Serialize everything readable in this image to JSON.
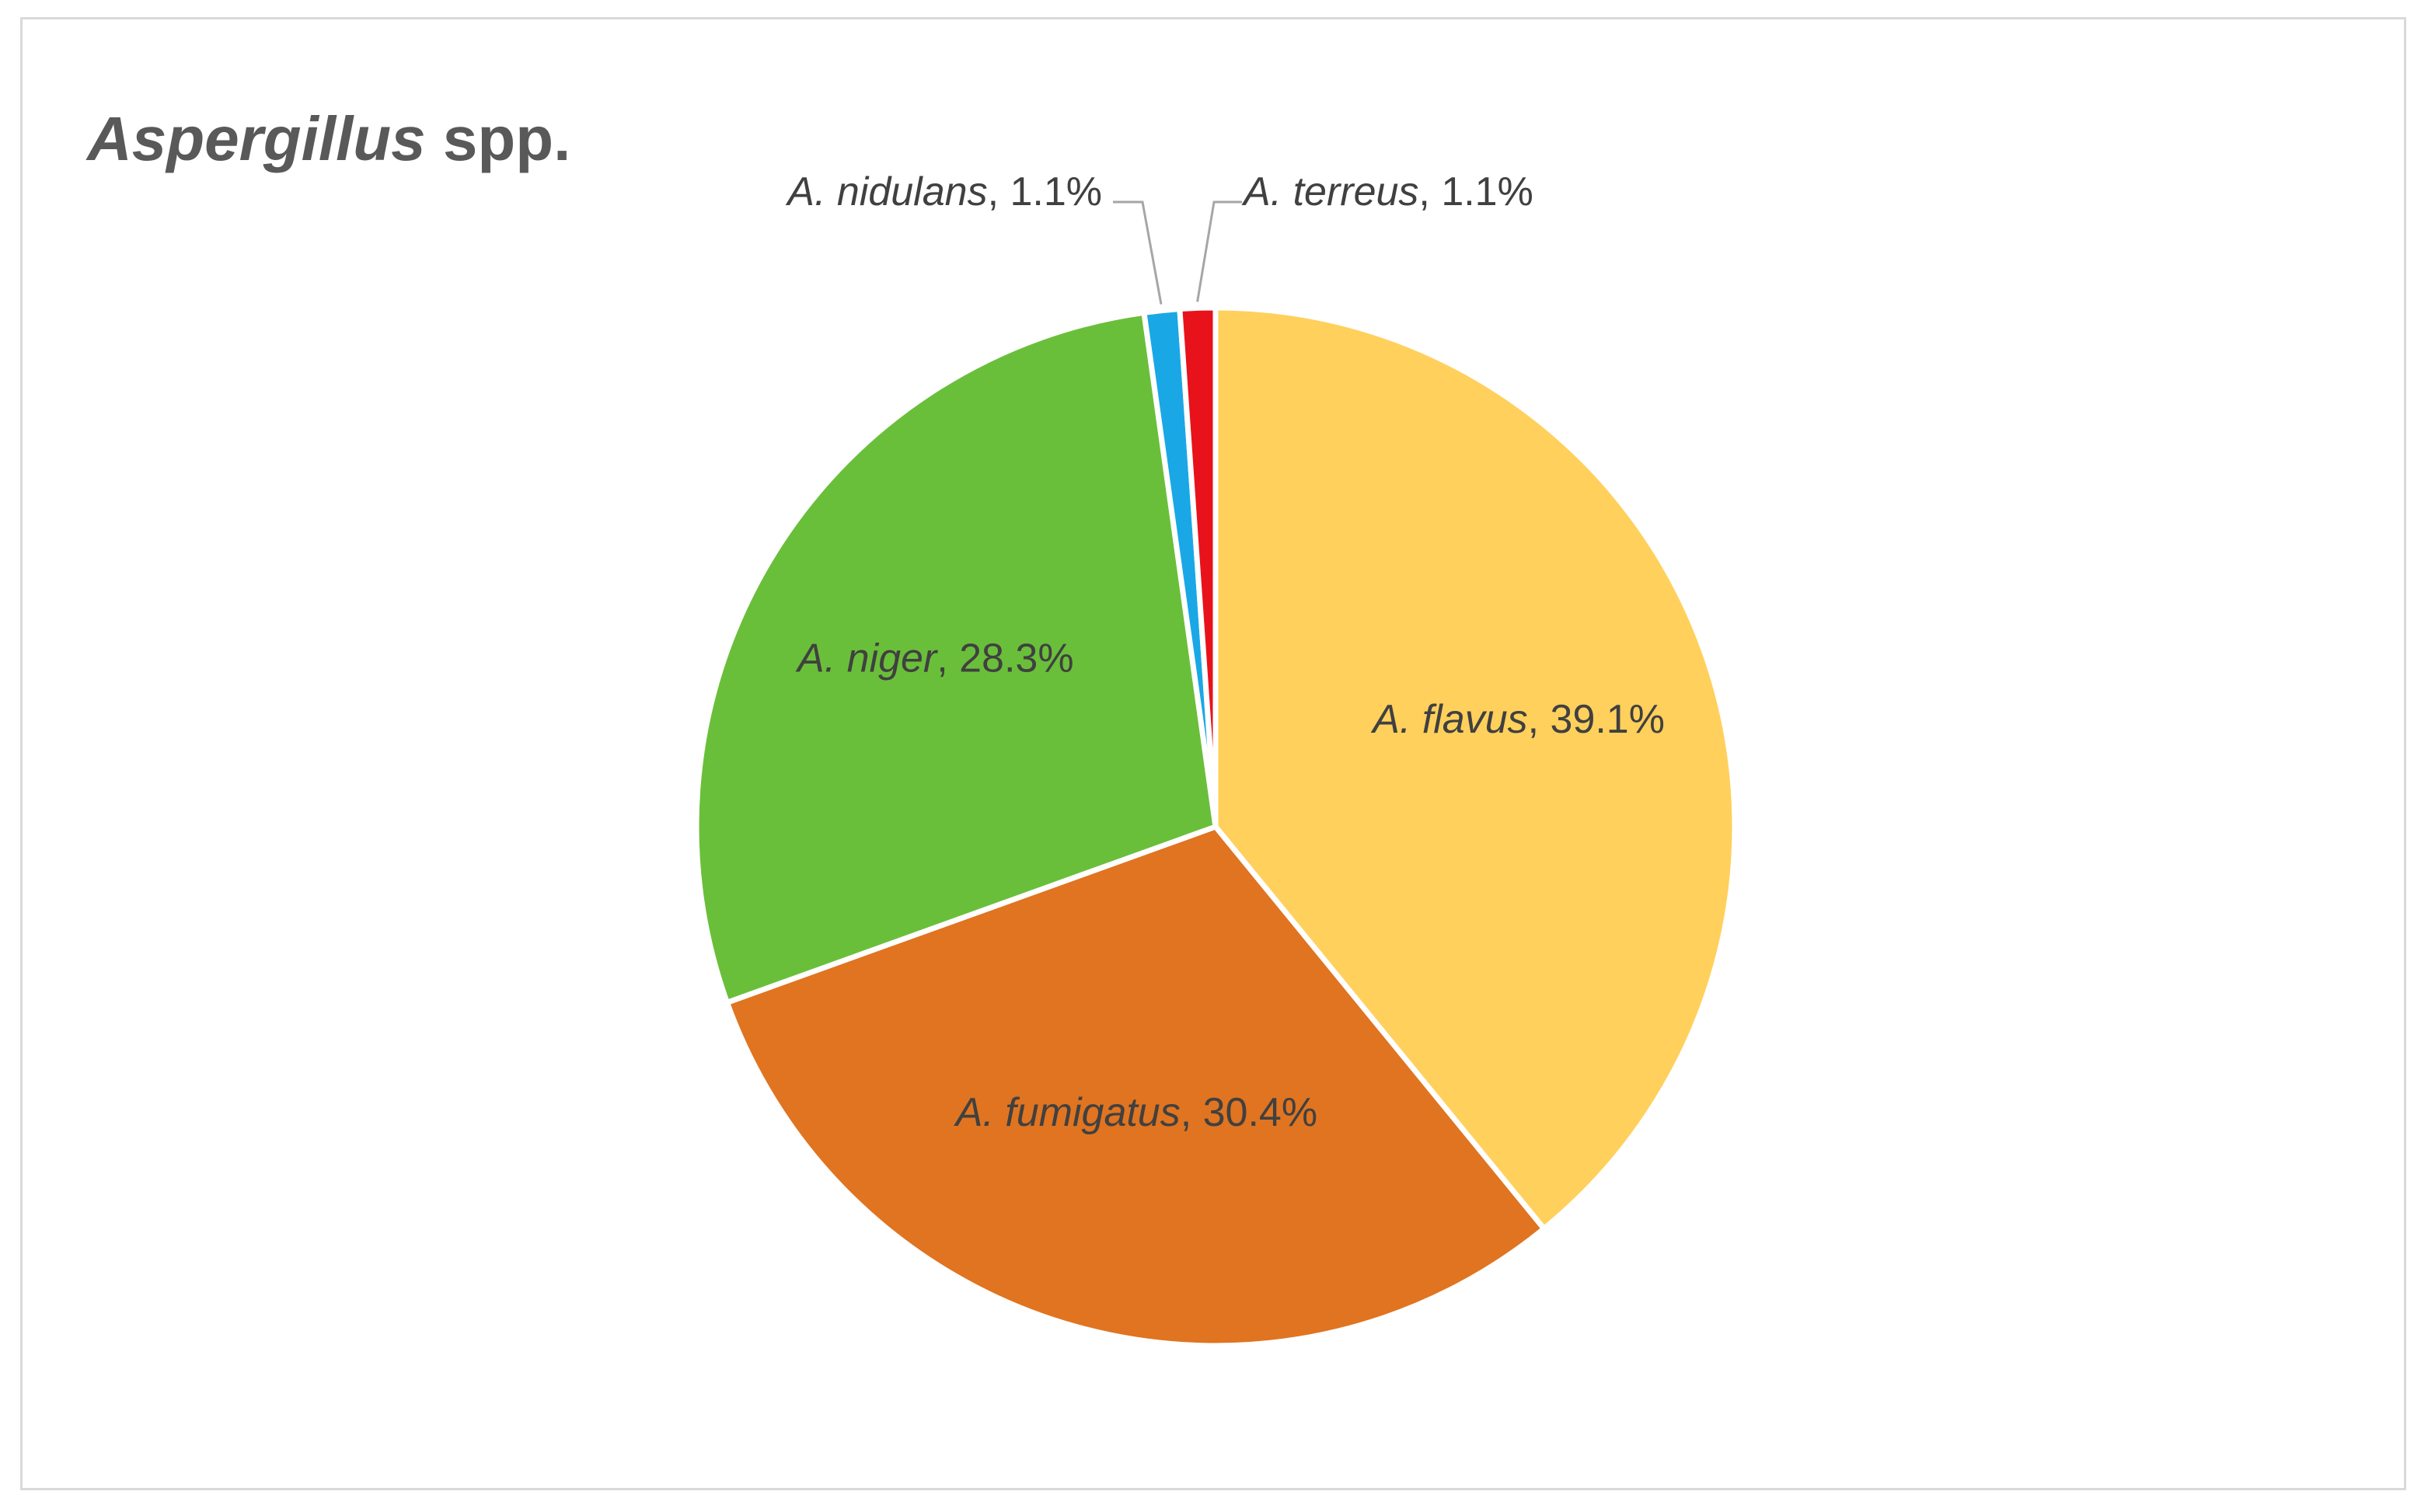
{
  "chart_data": {
    "type": "pie",
    "title": {
      "italic_part": "Aspergillus",
      "plain_part": " spp."
    },
    "start": "12 o'clock, clockwise",
    "slices": [
      {
        "genus": "A. ",
        "species": "flavus",
        "pct_text": ", 39.1%",
        "value": 39.1,
        "color": "#FFD05C",
        "label_pos": "inside"
      },
      {
        "genus": "A. ",
        "species": "fumigatus",
        "pct_text": ", 30.4%",
        "value": 30.4,
        "color": "#E07420",
        "label_pos": "inside"
      },
      {
        "genus": "A. ",
        "species": "niger",
        "pct_text": ", 28.3%",
        "value": 28.3,
        "color": "#6ABF3A",
        "label_pos": "inside"
      },
      {
        "genus": "A. ",
        "species": "nidulans",
        "pct_text": ", 1.1%",
        "value": 1.1,
        "color": "#1AA7E6",
        "label_pos": "outside-left"
      },
      {
        "genus": "A. ",
        "species": "terreus",
        "pct_text": ", 1.1%",
        "value": 1.1,
        "color": "#E8121B",
        "label_pos": "outside-right"
      }
    ]
  }
}
